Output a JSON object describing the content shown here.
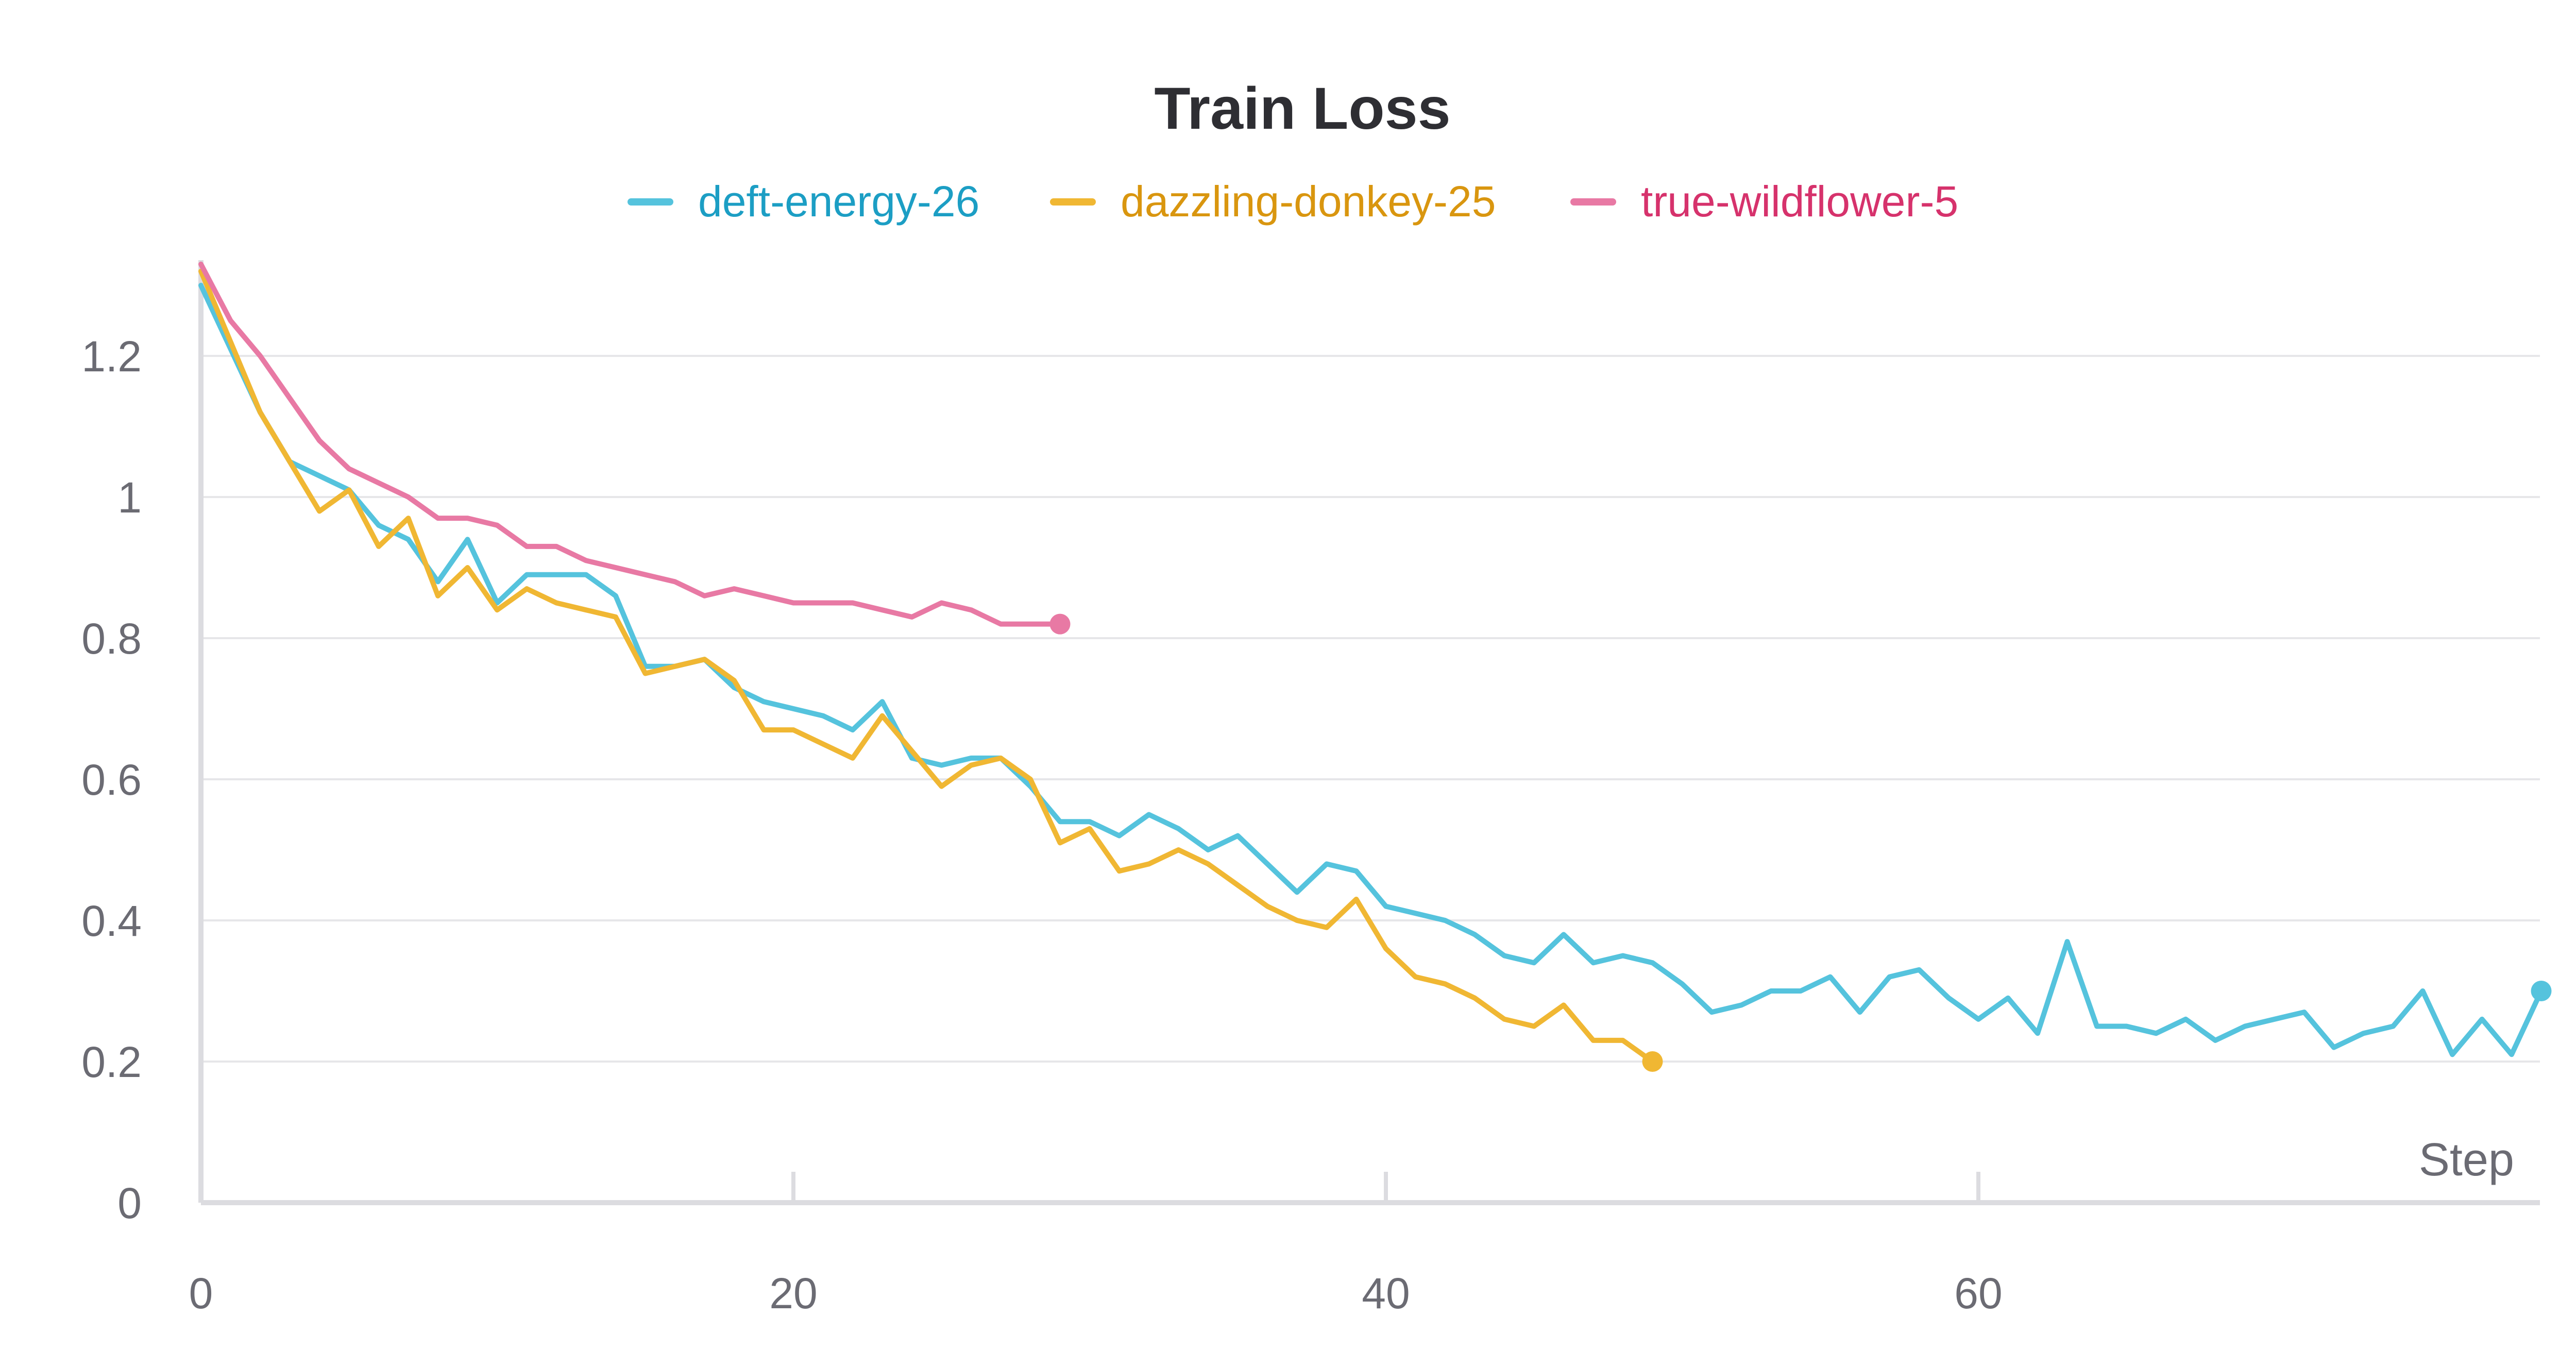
{
  "chart_data": {
    "type": "line",
    "title": "Train Loss",
    "xlabel": "Step",
    "ylabel": "",
    "xlim": [
      0,
      79
    ],
    "ylim": [
      0,
      1.35
    ],
    "x_ticks": [
      0,
      20,
      40,
      60
    ],
    "x_tick_labels": [
      "0",
      "20",
      "40",
      "60"
    ],
    "y_ticks": [
      0,
      0.2,
      0.4,
      0.6,
      0.8,
      1.0,
      1.2
    ],
    "y_tick_labels": [
      "0",
      "0.2",
      "0.4",
      "0.6",
      "0.8",
      "1",
      "1.2"
    ],
    "grid": true,
    "legend_position": "top-center",
    "series": [
      {
        "name": "deft-energy-26",
        "color": "#55c3dd",
        "text_color": "#1c9ec4",
        "x": [
          0,
          1,
          2,
          3,
          4,
          5,
          6,
          7,
          8,
          9,
          10,
          11,
          12,
          13,
          14,
          15,
          16,
          17,
          18,
          19,
          20,
          21,
          22,
          23,
          24,
          25,
          26,
          27,
          28,
          29,
          30,
          31,
          32,
          33,
          34,
          35,
          36,
          37,
          38,
          39,
          40,
          41,
          42,
          43,
          44,
          45,
          46,
          47,
          48,
          49,
          50,
          51,
          52,
          53,
          54,
          55,
          56,
          57,
          58,
          59,
          60,
          61,
          62,
          63,
          64,
          65,
          66,
          67,
          68,
          69,
          70,
          71,
          72,
          73,
          74,
          75,
          76,
          77,
          78,
          79
        ],
        "y": [
          1.3,
          1.21,
          1.12,
          1.05,
          1.03,
          1.01,
          0.96,
          0.94,
          0.88,
          0.94,
          0.85,
          0.89,
          0.89,
          0.89,
          0.86,
          0.76,
          0.76,
          0.77,
          0.73,
          0.71,
          0.7,
          0.69,
          0.67,
          0.71,
          0.63,
          0.62,
          0.63,
          0.63,
          0.59,
          0.54,
          0.54,
          0.52,
          0.55,
          0.53,
          0.5,
          0.52,
          0.48,
          0.44,
          0.48,
          0.47,
          0.42,
          0.41,
          0.4,
          0.38,
          0.35,
          0.34,
          0.38,
          0.34,
          0.35,
          0.34,
          0.31,
          0.27,
          0.28,
          0.3,
          0.3,
          0.32,
          0.27,
          0.32,
          0.33,
          0.29,
          0.26,
          0.29,
          0.24,
          0.37,
          0.25,
          0.25,
          0.24,
          0.26,
          0.23,
          0.25,
          0.26,
          0.27,
          0.22,
          0.24,
          0.25,
          0.3,
          0.21,
          0.26,
          0.21,
          0.3
        ]
      },
      {
        "name": "dazzling-donkey-25",
        "color": "#f0b733",
        "text_color": "#d9960f",
        "x": [
          0,
          1,
          2,
          3,
          4,
          5,
          6,
          7,
          8,
          9,
          10,
          11,
          12,
          13,
          14,
          15,
          16,
          17,
          18,
          19,
          20,
          21,
          22,
          23,
          24,
          25,
          26,
          27,
          28,
          29,
          30,
          31,
          32,
          33,
          34,
          35,
          36,
          37,
          38,
          39,
          40,
          41,
          42,
          43,
          44,
          45,
          46,
          47,
          48,
          49
        ],
        "y": [
          1.32,
          1.22,
          1.12,
          1.05,
          0.98,
          1.01,
          0.93,
          0.97,
          0.86,
          0.9,
          0.84,
          0.87,
          0.85,
          0.84,
          0.83,
          0.75,
          0.76,
          0.77,
          0.74,
          0.67,
          0.67,
          0.65,
          0.63,
          0.69,
          0.64,
          0.59,
          0.62,
          0.63,
          0.6,
          0.51,
          0.53,
          0.47,
          0.48,
          0.5,
          0.48,
          0.45,
          0.42,
          0.4,
          0.39,
          0.43,
          0.36,
          0.32,
          0.31,
          0.29,
          0.26,
          0.25,
          0.28,
          0.23,
          0.23,
          0.2
        ]
      },
      {
        "name": "true-wildflower-5",
        "color": "#e879a4",
        "text_color": "#d6326c",
        "x": [
          0,
          1,
          2,
          3,
          4,
          5,
          6,
          7,
          8,
          9,
          10,
          11,
          12,
          13,
          14,
          15,
          16,
          17,
          18,
          19,
          20,
          21,
          22,
          23,
          24,
          25,
          26,
          27,
          28,
          29
        ],
        "y": [
          1.33,
          1.25,
          1.2,
          1.14,
          1.08,
          1.04,
          1.02,
          1.0,
          0.97,
          0.97,
          0.96,
          0.93,
          0.93,
          0.91,
          0.9,
          0.89,
          0.88,
          0.86,
          0.87,
          0.86,
          0.85,
          0.85,
          0.85,
          0.84,
          0.83,
          0.85,
          0.84,
          0.82,
          0.82,
          0.82
        ]
      }
    ]
  }
}
